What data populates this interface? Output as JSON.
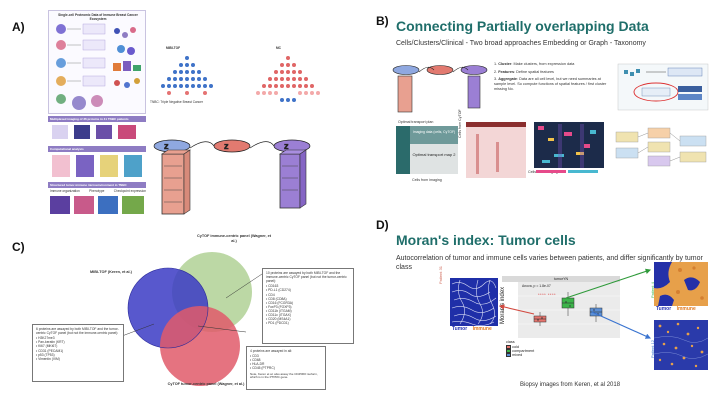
{
  "panel_letters": {
    "a": "A)",
    "b": "B)",
    "c": "C)",
    "d": "D)"
  },
  "panel_a": {
    "header_text": "Single-cell Proteomic Data of Immune Breast Cancer Ecosystem",
    "mibi_label": "MIBI-TOF",
    "mc_label": "MC",
    "legend_text": "TNBC: Triple Negative Breast Cancer",
    "section_1": "Multiplexed imaging of 36 proteins in 41 TNBC patients",
    "section_2": "Computational analysis",
    "section_3": "Structured tumor-immune microenvironment in TNBC",
    "bottom_labels": [
      "Immune organization",
      "Phenotype",
      "Checkpoint expression"
    ],
    "colors": {
      "purple_band": "#8e7cc3",
      "blue": "#3f51b5",
      "red_block": "#e8a090",
      "violet_block": "#9b7fd4"
    }
  },
  "panel_b": {
    "title": "Connecting Partially overlapping Data",
    "subtitle": "Cells/Clusters/Clinical  -  Two broad approaches Embedding or Graph - Taxonomy",
    "steps": [
      {
        "num": "1.",
        "bold": "Cluster",
        "text": ": Make clusters, from expression data"
      },
      {
        "num": "2.",
        "bold": "Features",
        "text": ": Define spatial features"
      },
      {
        "num": "3.",
        "bold": "Aggregate",
        "text": ": Data are all cell level, but we need summaries at sample level. So compute functions of spatial features / first cluster missing No."
      }
    ],
    "transport_title": "Optimal transport plan",
    "box_imaging": "Imaging data (cells, CyTOF)",
    "box_transport": "Optimal transport map 2",
    "axis_y": "Cells from CyTOF",
    "axis_x": "Cells from imaging",
    "axis_right": "Cells from imaging",
    "colors": {
      "title": "#1f6e6a",
      "teal": "#2b6b6b",
      "heat_bg": "#f3d6d6"
    }
  },
  "panel_c": {
    "label_mibi": "MIBI-TOF (Keren, et al.)",
    "label_cytof_immune": "CyTOF immune-centric panel (Wagner, et al.)",
    "label_cytof_tumor": "CyTOF tumor-centric panel (Wagner, et al.)",
    "box_top_title": "10 proteins are assayed by both MIBI-TOF and the immune-centric CyTOF panel (but not the tumor-centric panel):",
    "box_top_items": [
      "CD163",
      "PD-L1 (CD274)",
      "CD4",
      "CD8 (CD8A)",
      "CD16 (FCGR3A)",
      "FoxP3 (FOXP3)",
      "CD11b (ITGAM)",
      "CD11c (ITGAX)",
      "CD20 (MS4A1)",
      "PD1 (PDCD1)"
    ],
    "box_left_title": "6 proteins are assayed by both MIBI-TOF and the tumor-centric CyTOF panel (but not the immune-centric panel):",
    "box_left_items": [
      "H3K27me3",
      "Pan-keratin (KRT)",
      "Ki67 (MKI67)",
      "CD31 (PECAM1)",
      "p53 (TP53)",
      "Vimentin (VIM)"
    ],
    "box_center_title": "4 proteins are assayed in all:",
    "box_center_items": [
      "CD3",
      "CD68",
      "HLA-DR",
      "CD45 (PTPRC)"
    ],
    "box_center_note": "Note, Keren et al. also assay the CD45RO isoform, which is in the PTPRC gene.",
    "colors": {
      "green": "#b5d49b",
      "blue": "#3b3bc4",
      "red": "#e05a6a"
    }
  },
  "panel_d": {
    "title": "Moran's index: Tumor cells",
    "description": "Autocorrelation of tumor and immune cells varies between patients, and differ significantly by tumor class",
    "plot_header": "tumorYN",
    "stat_text": "Anova, p = 1.8e-07",
    "y_axis_label": "Moran's index",
    "legend_title": "class",
    "legend_items": [
      "cold",
      "compartment",
      "mixed"
    ],
    "sig_marks": "****  ****",
    "patient_left": "Patient 31",
    "patient_right_top": "Patient 4",
    "patient_right_bottom": "Patient 12",
    "tumor_label": "Tumor",
    "immune_label": "Immune",
    "caption": "Biopsy images from Keren, et al 2018",
    "colors": {
      "cold": "#e6756e",
      "compartment": "#3cb54a",
      "mixed": "#5b8fd6",
      "title": "#1f6e6a"
    }
  }
}
